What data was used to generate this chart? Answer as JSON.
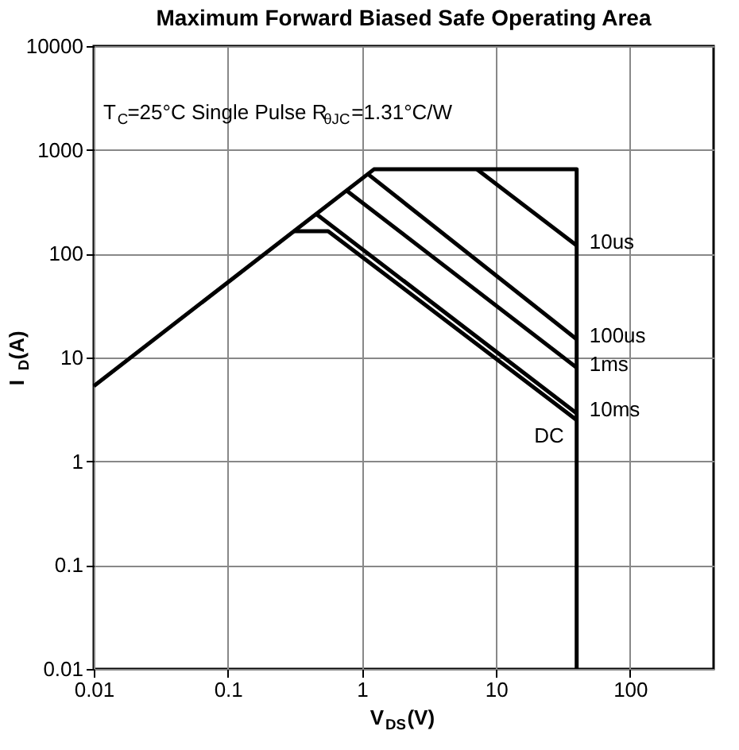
{
  "chart_data": {
    "type": "line",
    "title": "Maximum Forward Biased Safe Operating Area",
    "xlabel": "V$_{DS}$(V)",
    "ylabel": "I$_{D}$(A)",
    "annotations": [
      "T$_{C}$=25°C Single Pulse R$_{θJC}$=1.31°C/W"
    ],
    "log": "xy",
    "grid": true,
    "marker": "none",
    "line_style": "solid",
    "xlim": [
      0.01,
      420
    ],
    "ylim": [
      0.01,
      10000
    ],
    "xticks": [
      0.01,
      0.1,
      1,
      10,
      100
    ],
    "yticks": [
      0.01,
      0.1,
      1,
      10,
      100,
      1000,
      10000
    ],
    "series": [
      {
        "color": "#000000",
        "x": [
          0.01,
          1.23,
          40,
          40
        ],
        "values": [
          5.3,
          650,
          650,
          0.01
        ]
      },
      {
        "name": "10us",
        "color": "#000000",
        "x": [
          7.2,
          40
        ],
        "values": [
          650,
          120
        ]
      },
      {
        "name": "100us",
        "color": "#000000",
        "x": [
          1.1,
          40
        ],
        "values": [
          590,
          15
        ]
      },
      {
        "name": "1ms",
        "color": "#000000",
        "x": [
          0.76,
          40
        ],
        "values": [
          410,
          8
        ]
      },
      {
        "name": "10ms",
        "color": "#000000",
        "x": [
          0.46,
          40
        ],
        "values": [
          240,
          2.9
        ]
      },
      {
        "name": "DC",
        "color": "#000000",
        "x": [
          0.31,
          0.56,
          40
        ],
        "values": [
          165,
          165,
          2.5
        ]
      }
    ]
  }
}
